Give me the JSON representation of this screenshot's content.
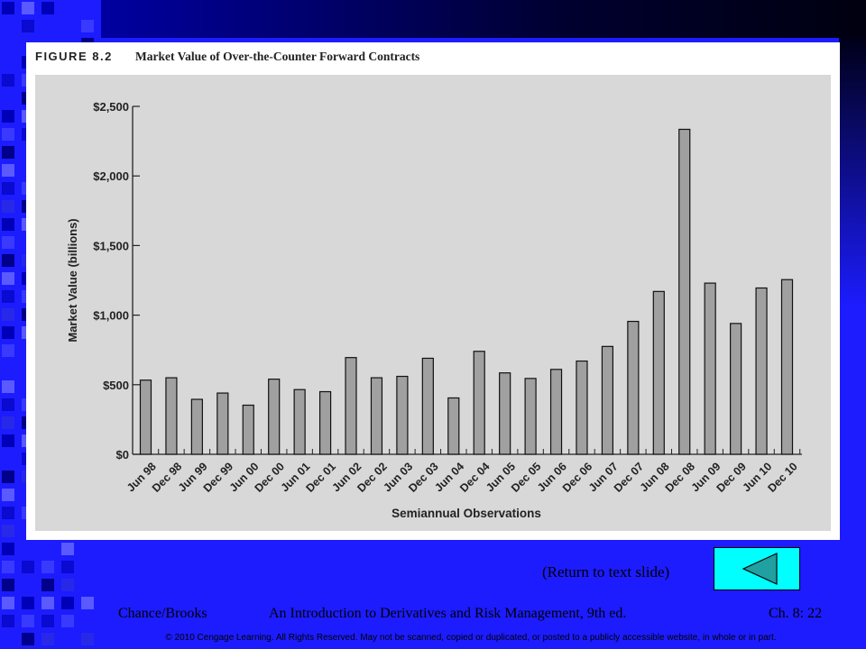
{
  "figure": {
    "label": "FIGURE 8.2",
    "title": "Market Value of Over-the-Counter Forward Contracts"
  },
  "chart_data": {
    "type": "bar",
    "title": "Market Value of Over-the-Counter Forward Contracts",
    "xlabel": "Semiannual Observations",
    "ylabel": "Market Value (billions)",
    "ylim": [
      0,
      2500
    ],
    "yticks": [
      0,
      500,
      1000,
      1500,
      2000,
      2500
    ],
    "ytick_labels": [
      "$0",
      "$500",
      "$1,000",
      "$1,500",
      "$2,000",
      "$2,500"
    ],
    "categories": [
      "Jun 98",
      "Dec 98",
      "Jun 99",
      "Dec 99",
      "Jun 00",
      "Dec 00",
      "Jun 01",
      "Dec 01",
      "Jun 02",
      "Dec 02",
      "Jun 03",
      "Dec 03",
      "Jun 04",
      "Dec 04",
      "Jun 05",
      "Dec 05",
      "Jun 06",
      "Dec 06",
      "Jun 07",
      "Dec 07",
      "Jun 08",
      "Dec 08",
      "Jun 09",
      "Dec 09",
      "Jun 10",
      "Dec 10"
    ],
    "values": [
      533,
      550,
      395,
      440,
      353,
      540,
      465,
      450,
      695,
      550,
      560,
      690,
      405,
      740,
      585,
      545,
      610,
      670,
      775,
      955,
      1170,
      2335,
      1230,
      940,
      1195,
      1255
    ],
    "bar_color": "#a0a0a0",
    "plot_bg": "#d8d8d8",
    "grid": false,
    "legend": "none"
  },
  "nav": {
    "return_label": "(Return to text slide)",
    "button_color": "#00ffff",
    "arrow_color": "#20a0a0"
  },
  "footer": {
    "author": "Chance/Brooks",
    "book": "An Introduction to Derivatives and Risk Management, 9th ed.",
    "chapter": "Ch. 8:  22",
    "copyright": "© 2010 Cengage Learning. All Rights Reserved.  May not be scanned, copied or duplicated, or posted to a publicly accessible website, in whole or in part."
  },
  "theme": {
    "background": "#1c1cff"
  }
}
